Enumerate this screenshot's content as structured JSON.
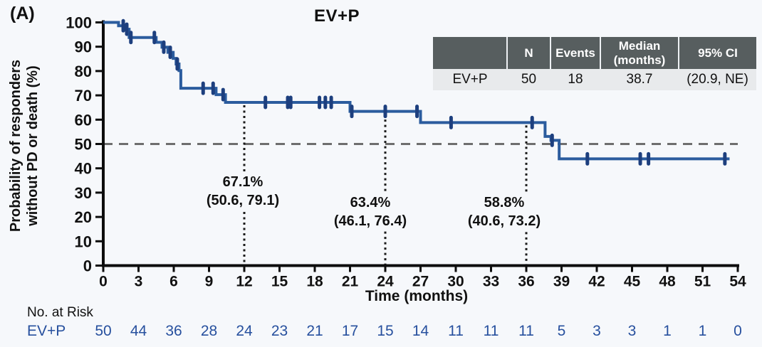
{
  "panel_label": "(A)",
  "title": "EV+P",
  "y_axis": {
    "title_line1": "Probability of responders",
    "title_line2": "without PD or death (%)"
  },
  "x_axis": {
    "title": "Time (months)"
  },
  "chart_data": {
    "type": "line",
    "subtype": "kaplan-meier",
    "title": "EV+P",
    "xlabel": "Time (months)",
    "ylabel": "Probability of responders without PD or death (%)",
    "xlim": [
      0,
      54
    ],
    "ylim": [
      0,
      100
    ],
    "x_ticks": [
      0,
      3,
      6,
      9,
      12,
      15,
      18,
      21,
      24,
      27,
      30,
      33,
      36,
      39,
      42,
      45,
      48,
      51,
      54
    ],
    "y_ticks": [
      0,
      10,
      20,
      30,
      40,
      50,
      60,
      70,
      80,
      90,
      100
    ],
    "km_steps": [
      [
        0,
        100
      ],
      [
        1.3,
        98.6
      ],
      [
        1.9,
        97.2
      ],
      [
        2.2,
        93.8
      ],
      [
        4.5,
        91.8
      ],
      [
        5.0,
        89.8
      ],
      [
        5.5,
        87.7
      ],
      [
        5.95,
        85.2
      ],
      [
        6.2,
        82.9
      ],
      [
        6.45,
        80.2
      ],
      [
        6.6,
        72.9
      ],
      [
        9.6,
        70.3
      ],
      [
        10.4,
        67.1
      ],
      [
        21.0,
        63.4
      ],
      [
        27.0,
        58.8
      ],
      [
        37.6,
        53.1
      ],
      [
        38.1,
        51.5
      ],
      [
        38.8,
        43.9
      ]
    ],
    "curve_end": 53.3,
    "censor_marks": [
      [
        1.7,
        98.6
      ],
      [
        2.0,
        97.2
      ],
      [
        2.35,
        93.8
      ],
      [
        4.35,
        93.8
      ],
      [
        5.15,
        89.8
      ],
      [
        5.7,
        87.7
      ],
      [
        6.3,
        82.9
      ],
      [
        8.5,
        72.9
      ],
      [
        9.35,
        72.9
      ],
      [
        10.2,
        70.3
      ],
      [
        13.8,
        67.1
      ],
      [
        15.7,
        67.1
      ],
      [
        15.95,
        67.1
      ],
      [
        18.4,
        67.1
      ],
      [
        18.9,
        67.1
      ],
      [
        19.4,
        67.1
      ],
      [
        21.15,
        63.4
      ],
      [
        24.0,
        63.4
      ],
      [
        26.7,
        63.4
      ],
      [
        29.6,
        58.8
      ],
      [
        36.5,
        58.8
      ],
      [
        38.2,
        51.5
      ],
      [
        41.2,
        43.9
      ],
      [
        45.7,
        43.9
      ],
      [
        46.4,
        43.9
      ],
      [
        52.9,
        43.9
      ]
    ],
    "reference_line_y": 50,
    "landmarks": [
      {
        "x": 12,
        "value": "67.1%",
        "ci": "(50.6, 79.1)"
      },
      {
        "x": 24,
        "value": "63.4%",
        "ci": "(46.1, 76.4)"
      },
      {
        "x": 36,
        "value": "58.8%",
        "ci": "(40.6, 73.2)"
      }
    ],
    "legend_position": "none",
    "grid": false
  },
  "inset_table": {
    "headers": [
      "",
      "N",
      "Events",
      "Median (months)",
      "95% CI"
    ],
    "rows": [
      [
        "EV+P",
        "50",
        "18",
        "38.7",
        "(20.9, NE)"
      ]
    ]
  },
  "risk_table": {
    "label": "No. at Risk",
    "group": "EV+P",
    "times": [
      0,
      3,
      6,
      9,
      12,
      15,
      18,
      21,
      24,
      27,
      30,
      33,
      36,
      39,
      42,
      45,
      48,
      51,
      54
    ],
    "counts": [
      50,
      44,
      36,
      28,
      24,
      23,
      21,
      17,
      15,
      14,
      11,
      11,
      11,
      5,
      3,
      3,
      1,
      1,
      0
    ]
  },
  "colors": {
    "background": "#f6f8fb",
    "curve": "#2b5c9e",
    "censor": "#1d3f7e",
    "axis": "#0d0d0d",
    "risk_numbers": "#27509e",
    "reference_dash": "#6e6e6e",
    "dotted_line": "#1a1a1a",
    "table_header_bg": "#575e5f",
    "table_header_text": "#ffffff",
    "table_row_bg": "#e8eaec"
  }
}
